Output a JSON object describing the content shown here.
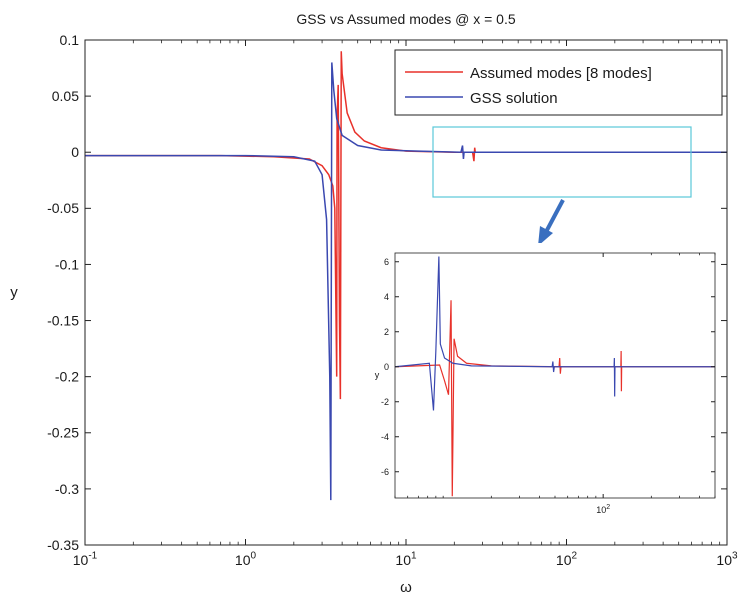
{
  "chart_data": [
    {
      "type": "line",
      "title": "GSS vs Assumed modes @ x = 0.5",
      "xlabel": "ω",
      "ylabel": "y",
      "xscale": "log",
      "xlim": [
        0.1,
        1000
      ],
      "ylim": [
        -0.35,
        0.1
      ],
      "grid": false,
      "legend_position": "top-right",
      "x_ticks": [
        {
          "value": 0.1,
          "base": "10",
          "exp": "-1"
        },
        {
          "value": 1,
          "base": "10",
          "exp": "0"
        },
        {
          "value": 10,
          "base": "10",
          "exp": "1"
        },
        {
          "value": 100,
          "base": "10",
          "exp": "2"
        },
        {
          "value": 1000,
          "base": "10",
          "exp": "3"
        }
      ],
      "y_ticks": [
        {
          "value": 0.1,
          "label": "0.1"
        },
        {
          "value": 0.05,
          "label": "0.05"
        },
        {
          "value": 0,
          "label": "0"
        },
        {
          "value": -0.05,
          "label": "-0.05"
        },
        {
          "value": -0.1,
          "label": "-0.1"
        },
        {
          "value": -0.15,
          "label": "-0.15"
        },
        {
          "value": -0.2,
          "label": "-0.2"
        },
        {
          "value": -0.25,
          "label": "-0.25"
        },
        {
          "value": -0.3,
          "label": "-0.3"
        },
        {
          "value": -0.35,
          "label": "-0.35"
        }
      ],
      "series": [
        {
          "name": "Assumed modes [8 modes]",
          "color": "#e8312a",
          "points": [
            [
              0.1,
              -0.003
            ],
            [
              0.7,
              -0.003
            ],
            [
              1.5,
              -0.004
            ],
            [
              2.5,
              -0.006
            ],
            [
              3.0,
              -0.012
            ],
            [
              3.3,
              -0.02
            ],
            [
              3.5,
              -0.03
            ],
            [
              3.6,
              -0.05
            ],
            [
              3.7,
              -0.2
            ],
            [
              3.72,
              0.03
            ],
            [
              3.78,
              0.06
            ],
            [
              3.85,
              -0.15
            ],
            [
              3.9,
              -0.22
            ],
            [
              3.95,
              0.09
            ],
            [
              4.0,
              0.07
            ],
            [
              4.3,
              0.035
            ],
            [
              4.8,
              0.018
            ],
            [
              5.5,
              0.01
            ],
            [
              7,
              0.004
            ],
            [
              10,
              0.001
            ],
            [
              20,
              0.0
            ],
            [
              26,
              0.0
            ],
            [
              26.5,
              -0.008
            ],
            [
              26.8,
              0.004
            ],
            [
              27,
              0.0
            ],
            [
              100,
              0.0
            ],
            [
              1000,
              0.0
            ]
          ]
        },
        {
          "name": "GSS solution",
          "color": "#3a48b0",
          "points": [
            [
              0.1,
              -0.003
            ],
            [
              1.0,
              -0.003
            ],
            [
              2.0,
              -0.004
            ],
            [
              2.7,
              -0.008
            ],
            [
              3.0,
              -0.02
            ],
            [
              3.2,
              -0.06
            ],
            [
              3.35,
              -0.2
            ],
            [
              3.4,
              -0.31
            ],
            [
              3.45,
              0.08
            ],
            [
              3.55,
              0.055
            ],
            [
              3.7,
              0.03
            ],
            [
              4.0,
              0.015
            ],
            [
              5.0,
              0.006
            ],
            [
              7.0,
              0.002
            ],
            [
              12,
              0.001
            ],
            [
              22,
              0.0
            ],
            [
              22.5,
              0.006
            ],
            [
              22.8,
              -0.006
            ],
            [
              23,
              0.0
            ],
            [
              100,
              0.0
            ],
            [
              1000,
              0.0
            ]
          ]
        }
      ]
    },
    {
      "type": "line",
      "title": "",
      "xlabel": "",
      "ylabel": "y",
      "xscale": "log",
      "xlim": [
        5,
        500
      ],
      "ylim": [
        -7.5,
        6.5
      ],
      "x_ticks": [
        {
          "value": 100,
          "base": "10",
          "exp": "2"
        }
      ],
      "y_ticks": [
        {
          "value": 6,
          "label": "6"
        },
        {
          "value": 4,
          "label": "4"
        },
        {
          "value": 2,
          "label": "2"
        },
        {
          "value": 0,
          "label": "0"
        },
        {
          "value": -2,
          "label": "-2"
        },
        {
          "value": -4,
          "label": "-4"
        },
        {
          "value": -6,
          "label": "-6"
        }
      ],
      "series": [
        {
          "name": "Assumed modes [8 modes]",
          "color": "#e8312a",
          "points": [
            [
              5,
              0.0
            ],
            [
              9.5,
              0.1
            ],
            [
              10.2,
              -0.8
            ],
            [
              10.8,
              -1.6
            ],
            [
              11.2,
              3.8
            ],
            [
              11.4,
              -7.4
            ],
            [
              11.7,
              1.6
            ],
            [
              12.3,
              0.6
            ],
            [
              14,
              0.2
            ],
            [
              20,
              0.05
            ],
            [
              53,
              0.0
            ],
            [
              53.5,
              0.5
            ],
            [
              54,
              -0.4
            ],
            [
              54.5,
              0.0
            ],
            [
              129,
              0.0
            ],
            [
              129.5,
              0.9
            ],
            [
              130,
              -1.4
            ],
            [
              130.5,
              0.0
            ],
            [
              500,
              0.0
            ]
          ]
        },
        {
          "name": "GSS solution",
          "color": "#3a48b0",
          "points": [
            [
              5,
              0.0
            ],
            [
              8.2,
              0.2
            ],
            [
              8.7,
              -2.5
            ],
            [
              9.0,
              0.9
            ],
            [
              9.4,
              6.3
            ],
            [
              9.6,
              1.3
            ],
            [
              10.2,
              0.5
            ],
            [
              11.5,
              0.2
            ],
            [
              15,
              0.05
            ],
            [
              48,
              0.0
            ],
            [
              48.5,
              0.3
            ],
            [
              49,
              -0.3
            ],
            [
              49.5,
              0.0
            ],
            [
              117,
              0.0
            ],
            [
              117.5,
              0.5
            ],
            [
              118,
              -1.7
            ],
            [
              118.5,
              0.0
            ],
            [
              500,
              0.0
            ]
          ]
        }
      ]
    }
  ],
  "icons": {
    "zoom_highlight_color": "#5bc8d8",
    "arrow_color": "#3a6fbf"
  }
}
